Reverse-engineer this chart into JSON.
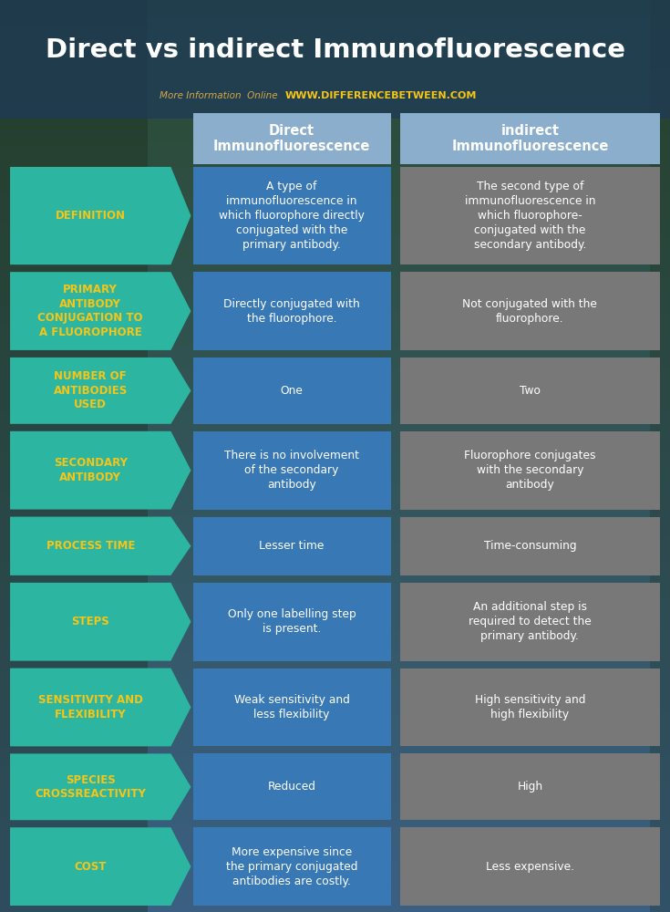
{
  "title": "Direct vs indirect Immunofluorescence",
  "subtitle_gray": "More Information  Online",
  "subtitle_url": "WWW.DIFFERENCEBETWEEN.COM",
  "col1_header": "Direct\nImmunofluorescence",
  "col2_header": "indirect\nImmunofluorescence",
  "rows": [
    {
      "label": "DEFINITION",
      "col1": "A type of\nimmunofluorescence in\nwhich fluorophore directly\nconjugated with the\nprimary antibody.",
      "col2": "The second type of\nimmunofluorescence in\nwhich fluorophore-\nconjugated with the\nsecondary antibody."
    },
    {
      "label": "PRIMARY\nANTIBODY\nCONJUGATION TO\nA FLUOROPHORE",
      "col1": "Directly conjugated with\nthe fluorophore.",
      "col2": "Not conjugated with the\nfluorophore."
    },
    {
      "label": "NUMBER OF\nANTIBODIES\nUSED",
      "col1": "One",
      "col2": "Two"
    },
    {
      "label": "SECONDARY\nANTIBODY",
      "col1": "There is no involvement\nof the secondary\nantibody",
      "col2": "Fluorophore conjugates\nwith the secondary\nantibody"
    },
    {
      "label": "PROCESS TIME",
      "col1": "Lesser time",
      "col2": "Time-consuming"
    },
    {
      "label": "STEPS",
      "col1": "Only one labelling step\nis present.",
      "col2": "An additional step is\nrequired to detect the\nprimary antibody."
    },
    {
      "label": "SENSITIVITY AND\nFLEXIBILITY",
      "col1": "Weak sensitivity and\nless flexibility",
      "col2": "High sensitivity and\nhigh flexibility"
    },
    {
      "label": "SPECIES\nCROSSREACTIVITY",
      "col1": "Reduced",
      "col2": "High"
    },
    {
      "label": "COST",
      "col1": "More expensive since\nthe primary conjugated\nantibodies are costly.",
      "col2": "Less expensive."
    }
  ],
  "bg_top_color": "#3a5f82",
  "bg_bottom_color": "#2a4a30",
  "teal_color": "#2cb5a0",
  "blue_col1_color": "#3878b4",
  "gray_col2_color": "#787878",
  "label_text_color": "#f5c518",
  "col_text_color": "#ffffff",
  "header_bg_color": "#8aaecc",
  "title_color": "#ffffff",
  "subtitle_gray_color": "#d4a84b",
  "subtitle_url_color": "#f5c518"
}
